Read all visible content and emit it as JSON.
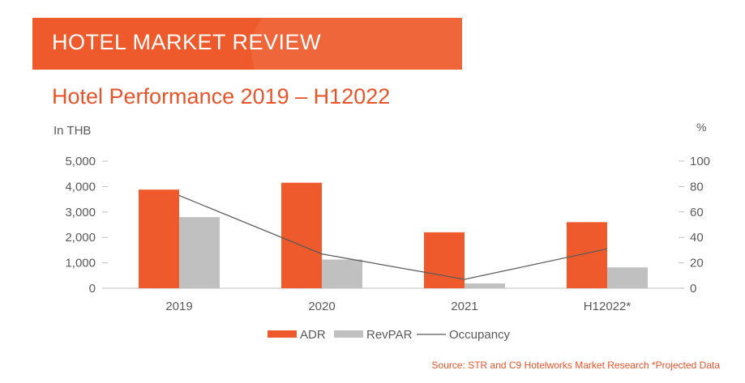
{
  "header": {
    "banner": "HOTEL MARKET REVIEW",
    "subtitle": "Hotel Performance 2019 – H12022"
  },
  "colors": {
    "accent": "#ee5a2b",
    "adr": "#ee5a2b",
    "revpar": "#c0c0c0",
    "occupancy": "#595959",
    "axis_text": "#595959"
  },
  "chart_data": {
    "type": "bar",
    "title": "Hotel Performance 2019 – H12022",
    "categories": [
      "2019",
      "2020",
      "2021",
      "H12022*"
    ],
    "series": [
      {
        "name": "ADR",
        "kind": "bar",
        "axis": "left",
        "values": [
          3880,
          4150,
          2200,
          2600
        ]
      },
      {
        "name": "RevPAR",
        "kind": "bar",
        "axis": "left",
        "values": [
          2800,
          1130,
          190,
          820
        ]
      },
      {
        "name": "Occupancy",
        "kind": "line",
        "axis": "right",
        "values": [
          73,
          27,
          7,
          31
        ]
      }
    ],
    "y_left": {
      "label": "In THB",
      "min": 0,
      "max": 5000,
      "ticks": [
        "0",
        "1,000",
        "2,000",
        "3,000",
        "4,000",
        "5,000"
      ]
    },
    "y_right": {
      "label": "%",
      "min": 0,
      "max": 100,
      "ticks": [
        "0",
        "20",
        "40",
        "60",
        "80",
        "100"
      ]
    },
    "grid": false,
    "legend_position": "bottom"
  },
  "footer": {
    "source": "Source: STR and C9 Hotelworks Market Research *Projected Data"
  }
}
